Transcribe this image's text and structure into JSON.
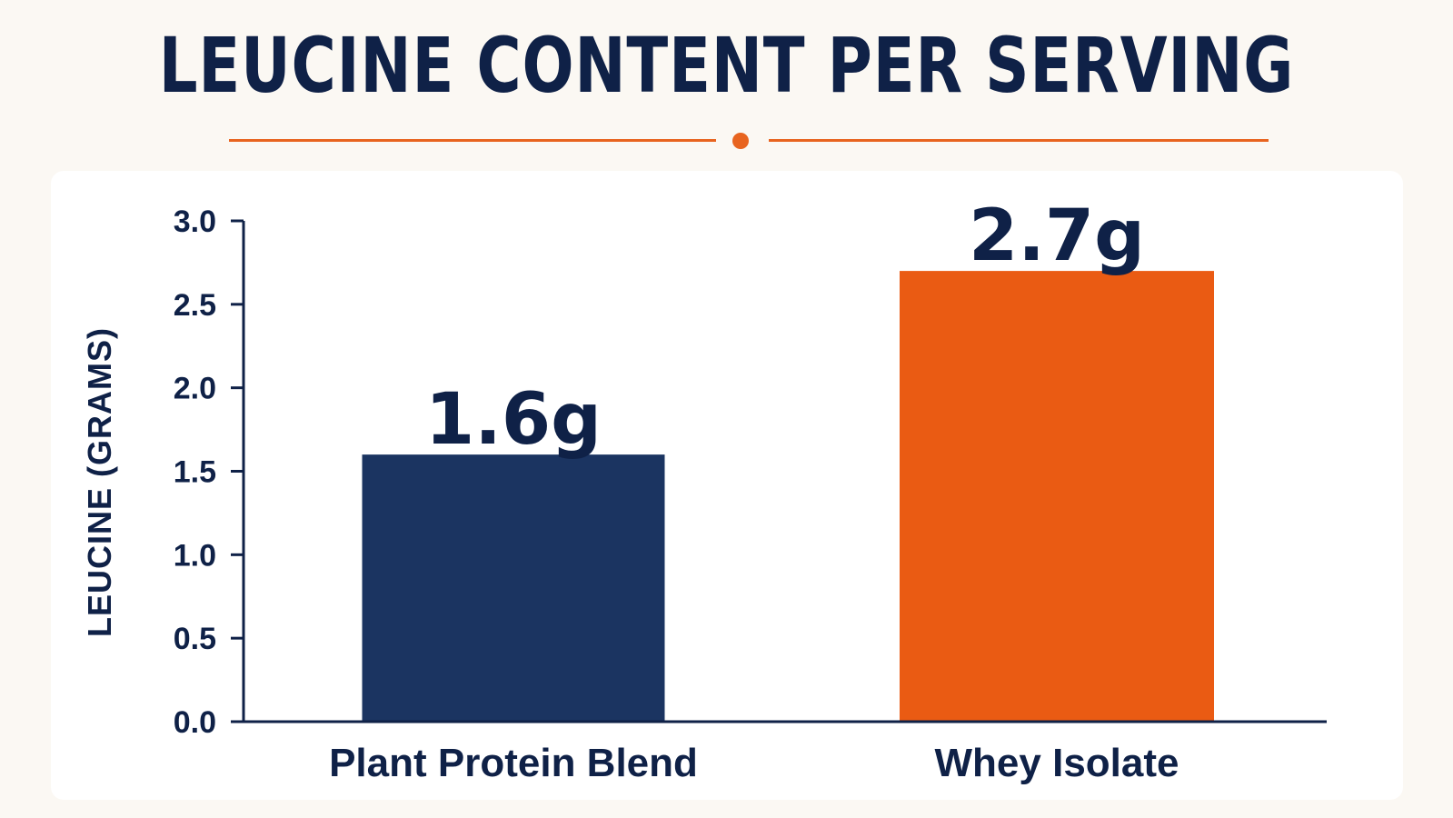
{
  "chart_data": {
    "type": "bar",
    "title": "LEUCINE CONTENT PER SERVING",
    "xlabel": "",
    "ylabel": "LEUCINE (GRAMS)",
    "categories": [
      "Plant Protein Blend",
      "Whey Isolate"
    ],
    "values": [
      1.6,
      2.7
    ],
    "value_labels": [
      "1.6g",
      "2.7g"
    ],
    "bar_colors": [
      "#1b3461",
      "#ea5b13"
    ],
    "ylim": [
      0,
      3.0
    ],
    "yticks": [
      0.0,
      0.5,
      1.0,
      1.5,
      2.0,
      2.5,
      3.0
    ],
    "ytick_labels": [
      "0.0",
      "0.5",
      "1.0",
      "1.5",
      "2.0",
      "2.5",
      "3.0"
    ],
    "grid": false,
    "legend": "none"
  },
  "colors": {
    "text": "#0f2147",
    "accent": "#e8641f",
    "background": "#fbf8f3",
    "panel": "#ffffff"
  }
}
